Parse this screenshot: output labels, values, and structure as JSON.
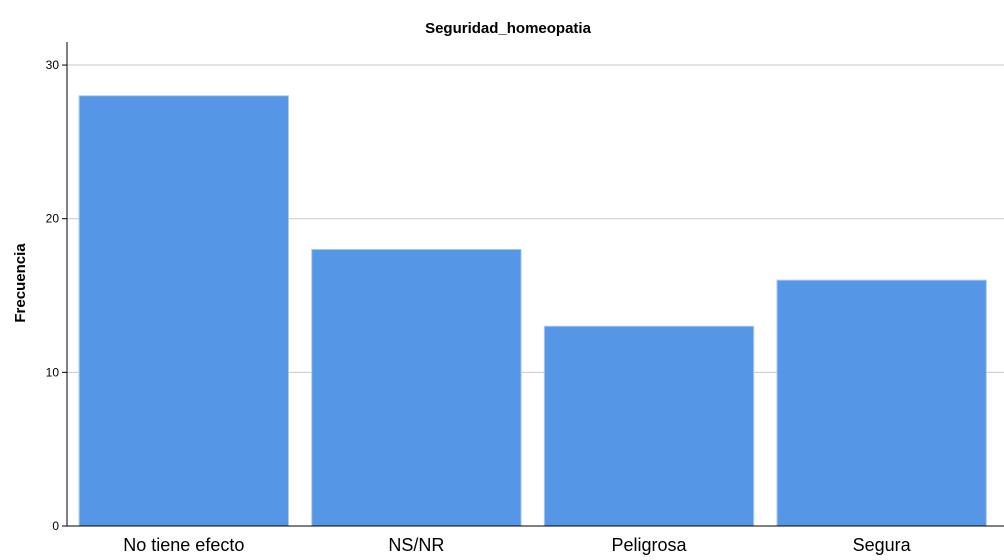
{
  "chart_data": {
    "type": "bar",
    "title": "Seguridad_homeopatia",
    "xlabel": "",
    "ylabel": "Frecuencia",
    "categories": [
      "No tiene efecto",
      "NS/NR",
      "Peligrosa",
      "Segura"
    ],
    "values": [
      28,
      18,
      13,
      16
    ],
    "ylim": [
      0,
      31.5
    ],
    "yticks": [
      0,
      10,
      20,
      30
    ],
    "grid": true,
    "legend": "none",
    "bar_color": "#5596e6",
    "bar_edge_color": "#aec8ea",
    "grid_color": "#c8c8c8",
    "axis_color": "#000000"
  }
}
